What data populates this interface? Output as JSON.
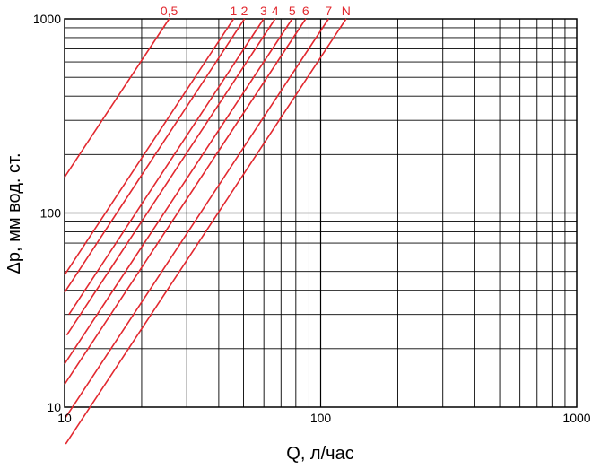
{
  "chart_data": {
    "type": "line",
    "xscale": "log",
    "yscale": "log",
    "xlim": [
      10,
      1000
    ],
    "ylim": [
      10,
      1000
    ],
    "xlabel": "Q, л/час",
    "ylabel": "Δp, мм вод. ст.",
    "grid": true,
    "x_ticks": [
      {
        "value": 10,
        "label": "10"
      },
      {
        "value": 100,
        "label": "100"
      },
      {
        "value": 1000,
        "label": "1000"
      }
    ],
    "y_ticks": [
      {
        "value": 10,
        "label": "10"
      },
      {
        "value": 100,
        "label": "100"
      },
      {
        "value": 1000,
        "label": "1000"
      }
    ],
    "line_color": "#e2282f",
    "slope": 2,
    "series": [
      {
        "name": "0,5",
        "x": [
          10,
          25.6
        ],
        "y": [
          153,
          1000
        ]
      },
      {
        "name": "1",
        "x": [
          10,
          45.7
        ],
        "y": [
          48,
          1000
        ]
      },
      {
        "name": "2",
        "x": [
          10,
          50.4
        ],
        "y": [
          39,
          1000
        ]
      },
      {
        "name": "3",
        "x": [
          10.4,
          59.9
        ],
        "y": [
          30,
          1000
        ]
      },
      {
        "name": "4",
        "x": [
          10.2,
          66.4
        ],
        "y": [
          23.5,
          1000
        ]
      },
      {
        "name": "5",
        "x": [
          10,
          77.4
        ],
        "y": [
          16.7,
          1000
        ]
      },
      {
        "name": "6",
        "x": [
          10,
          87.4
        ],
        "y": [
          13.1,
          1000
        ]
      },
      {
        "name": "7",
        "x": [
          10.1,
          107.3
        ],
        "y": [
          8.86,
          1000
        ]
      },
      {
        "name": "N",
        "x": [
          10.1,
          125.7
        ],
        "y": [
          6.46,
          1000
        ]
      }
    ]
  }
}
